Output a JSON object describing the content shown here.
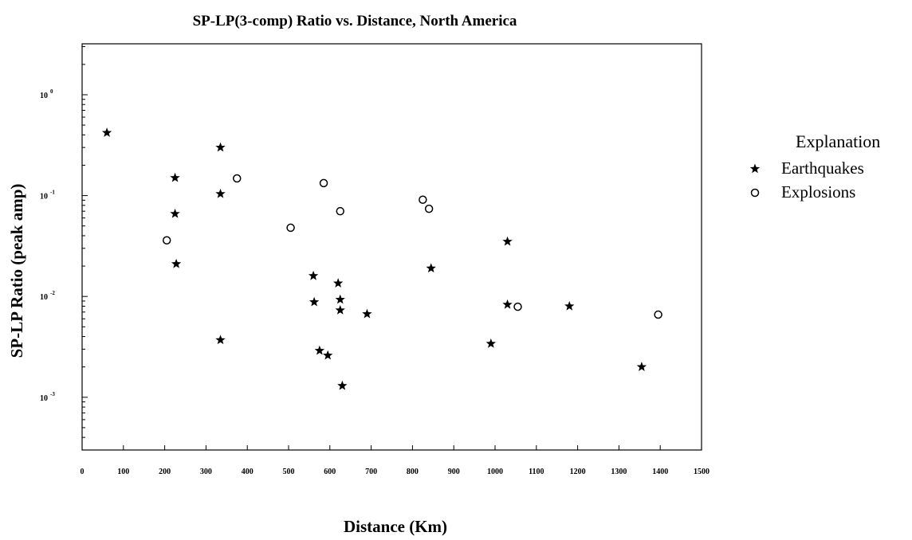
{
  "chart_data": {
    "type": "scatter",
    "title": "SP-LP(3-comp) Ratio vs. Distance, North America",
    "xlabel": "Distance (Km)",
    "ylabel": "SP-LP Ratio (peak amp)",
    "xlim": [
      0,
      1500
    ],
    "ylim": [
      0.0003,
      3.2
    ],
    "yscale": "log",
    "x_ticks": [
      0,
      100,
      200,
      300,
      400,
      500,
      600,
      700,
      800,
      900,
      1000,
      1100,
      1200,
      1300,
      1400,
      1500
    ],
    "y_ticks": [
      {
        "value": 1,
        "base": "10",
        "exp": "0"
      },
      {
        "value": 0.1,
        "base": "10",
        "exp": "-1"
      },
      {
        "value": 0.01,
        "base": "10",
        "exp": "-2"
      },
      {
        "value": 0.001,
        "base": "10",
        "exp": "-3"
      }
    ],
    "grid": false,
    "legend_title": "Explanation",
    "legend_position": "right",
    "series": [
      {
        "name": "Earthquakes",
        "marker": "star",
        "points": [
          {
            "x": 60,
            "y": 0.42
          },
          {
            "x": 225,
            "y": 0.15
          },
          {
            "x": 225,
            "y": 0.066
          },
          {
            "x": 228,
            "y": 0.021
          },
          {
            "x": 335,
            "y": 0.3
          },
          {
            "x": 335,
            "y": 0.104
          },
          {
            "x": 335,
            "y": 0.0037
          },
          {
            "x": 560,
            "y": 0.016
          },
          {
            "x": 562,
            "y": 0.0088
          },
          {
            "x": 575,
            "y": 0.0029
          },
          {
            "x": 595,
            "y": 0.0026
          },
          {
            "x": 620,
            "y": 0.0135
          },
          {
            "x": 625,
            "y": 0.0093
          },
          {
            "x": 625,
            "y": 0.0073
          },
          {
            "x": 630,
            "y": 0.0013
          },
          {
            "x": 690,
            "y": 0.0067
          },
          {
            "x": 845,
            "y": 0.019
          },
          {
            "x": 990,
            "y": 0.0034
          },
          {
            "x": 1030,
            "y": 0.035
          },
          {
            "x": 1030,
            "y": 0.0083
          },
          {
            "x": 1180,
            "y": 0.008
          },
          {
            "x": 1355,
            "y": 0.002
          }
        ]
      },
      {
        "name": "Explosions",
        "marker": "circle",
        "points": [
          {
            "x": 205,
            "y": 0.036
          },
          {
            "x": 375,
            "y": 0.148
          },
          {
            "x": 505,
            "y": 0.048
          },
          {
            "x": 585,
            "y": 0.133
          },
          {
            "x": 625,
            "y": 0.07
          },
          {
            "x": 825,
            "y": 0.091
          },
          {
            "x": 840,
            "y": 0.074
          },
          {
            "x": 1055,
            "y": 0.0079
          },
          {
            "x": 1395,
            "y": 0.0066
          }
        ]
      }
    ]
  }
}
